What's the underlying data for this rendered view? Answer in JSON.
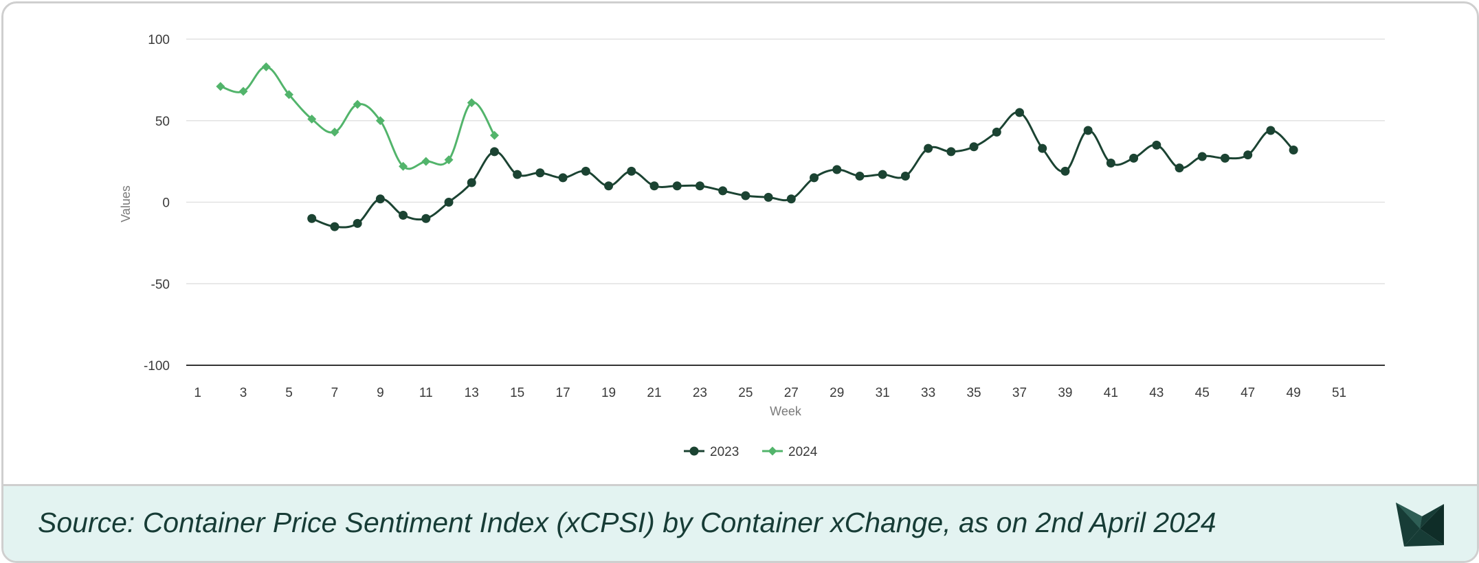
{
  "chart_data": {
    "type": "line",
    "xlabel": "Week",
    "ylabel": "Values",
    "xlim": [
      0.5,
      53
    ],
    "ylim": [
      -100,
      100
    ],
    "yticks": [
      100,
      50,
      0,
      -50,
      -100
    ],
    "xticks": [
      1,
      3,
      5,
      7,
      9,
      11,
      13,
      15,
      17,
      19,
      21,
      23,
      25,
      27,
      29,
      31,
      33,
      35,
      37,
      39,
      41,
      43,
      45,
      47,
      49,
      51
    ],
    "grid": true,
    "legend_position": "bottom",
    "series": [
      {
        "name": "2023",
        "color": "#1b4332",
        "marker": "circle",
        "x": [
          6,
          7,
          8,
          9,
          10,
          11,
          12,
          13,
          14,
          15,
          16,
          17,
          18,
          19,
          20,
          21,
          22,
          23,
          24,
          25,
          26,
          27,
          28,
          29,
          30,
          31,
          32,
          33,
          34,
          35,
          36,
          37,
          38,
          39,
          40,
          41,
          42,
          43,
          44,
          45,
          46,
          47,
          48,
          49
        ],
        "values": [
          -10,
          -15,
          -13,
          2,
          -8,
          -10,
          0,
          12,
          31,
          17,
          18,
          15,
          19,
          10,
          19,
          10,
          10,
          10,
          7,
          4,
          3,
          2,
          15,
          20,
          16,
          17,
          16,
          33,
          31,
          34,
          43,
          55,
          33,
          19,
          44,
          24,
          27,
          35,
          21,
          28,
          27,
          29,
          44,
          32
        ]
      },
      {
        "name": "2024",
        "color": "#52b46b",
        "marker": "diamond",
        "x": [
          2,
          3,
          4,
          5,
          6,
          7,
          8,
          9,
          10,
          11,
          12,
          13,
          14
        ],
        "values": [
          71,
          68,
          83,
          66,
          51,
          43,
          60,
          50,
          22,
          25,
          26,
          61,
          41
        ]
      }
    ]
  },
  "footer": {
    "source_text": "Source: Container Price Sentiment Index (xCPSI) by Container xChange, as on 2nd April 2024",
    "logo_icon": "container-xchange-logo-icon"
  }
}
